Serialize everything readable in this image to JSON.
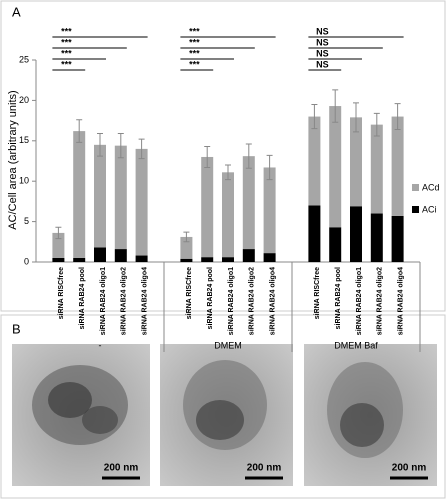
{
  "chart_data": {
    "type": "bar",
    "stacked": true,
    "panel_label": "A",
    "y_label": "AC/Cell area (arbitrary units)",
    "categories": [
      "siRNA RISCfree",
      "siRNA RAB24 pool",
      "siRNA RAB24 oligo1",
      "siRNA RAB24 oligo2",
      "siRNA RAB24 oligo4",
      "siRNA RISCfree",
      "siRNA RAB24 pool",
      "siRNA RAB24 oligo1",
      "siRNA RAB24 oligo2",
      "siRNA RAB24 oligo4",
      "siRNA RISCfree",
      "siRNA RAB24 pool",
      "siRNA RAB24 oligo1",
      "siRNA RAB24 oligo2",
      "siRNA RAB24 oligo4"
    ],
    "groups": [
      "-",
      "DMEM",
      "DMEM Baf"
    ],
    "series": [
      {
        "name": "ACi",
        "color": "#000000",
        "values": [
          0.5,
          0.5,
          1.8,
          1.6,
          0.8,
          0.4,
          0.6,
          0.6,
          1.6,
          1.1,
          7.0,
          4.3,
          6.9,
          6.0,
          5.7
        ]
      },
      {
        "name": "ACd",
        "color": "#a6a6a6",
        "values": [
          3.1,
          15.7,
          12.7,
          12.8,
          13.2,
          2.7,
          12.4,
          10.5,
          11.5,
          10.6,
          11.0,
          15.0,
          11.0,
          11.0,
          12.3
        ],
        "errors": [
          0.7,
          1.4,
          1.4,
          1.5,
          1.2,
          0.6,
          1.3,
          0.9,
          1.5,
          1.5,
          1.5,
          2.0,
          1.8,
          1.4,
          1.6
        ]
      }
    ],
    "significance": [
      "***",
      "***",
      "***",
      "***",
      "***",
      "***",
      "***",
      "***",
      "NS",
      "NS",
      "NS",
      "NS"
    ],
    "ylim": [
      0,
      25
    ],
    "yticks": [
      0,
      5,
      10,
      15,
      20,
      25
    ],
    "grid": false
  },
  "panel_b": {
    "label": "B",
    "scale_bars": [
      "200 nm",
      "200 nm",
      "200 nm"
    ]
  }
}
